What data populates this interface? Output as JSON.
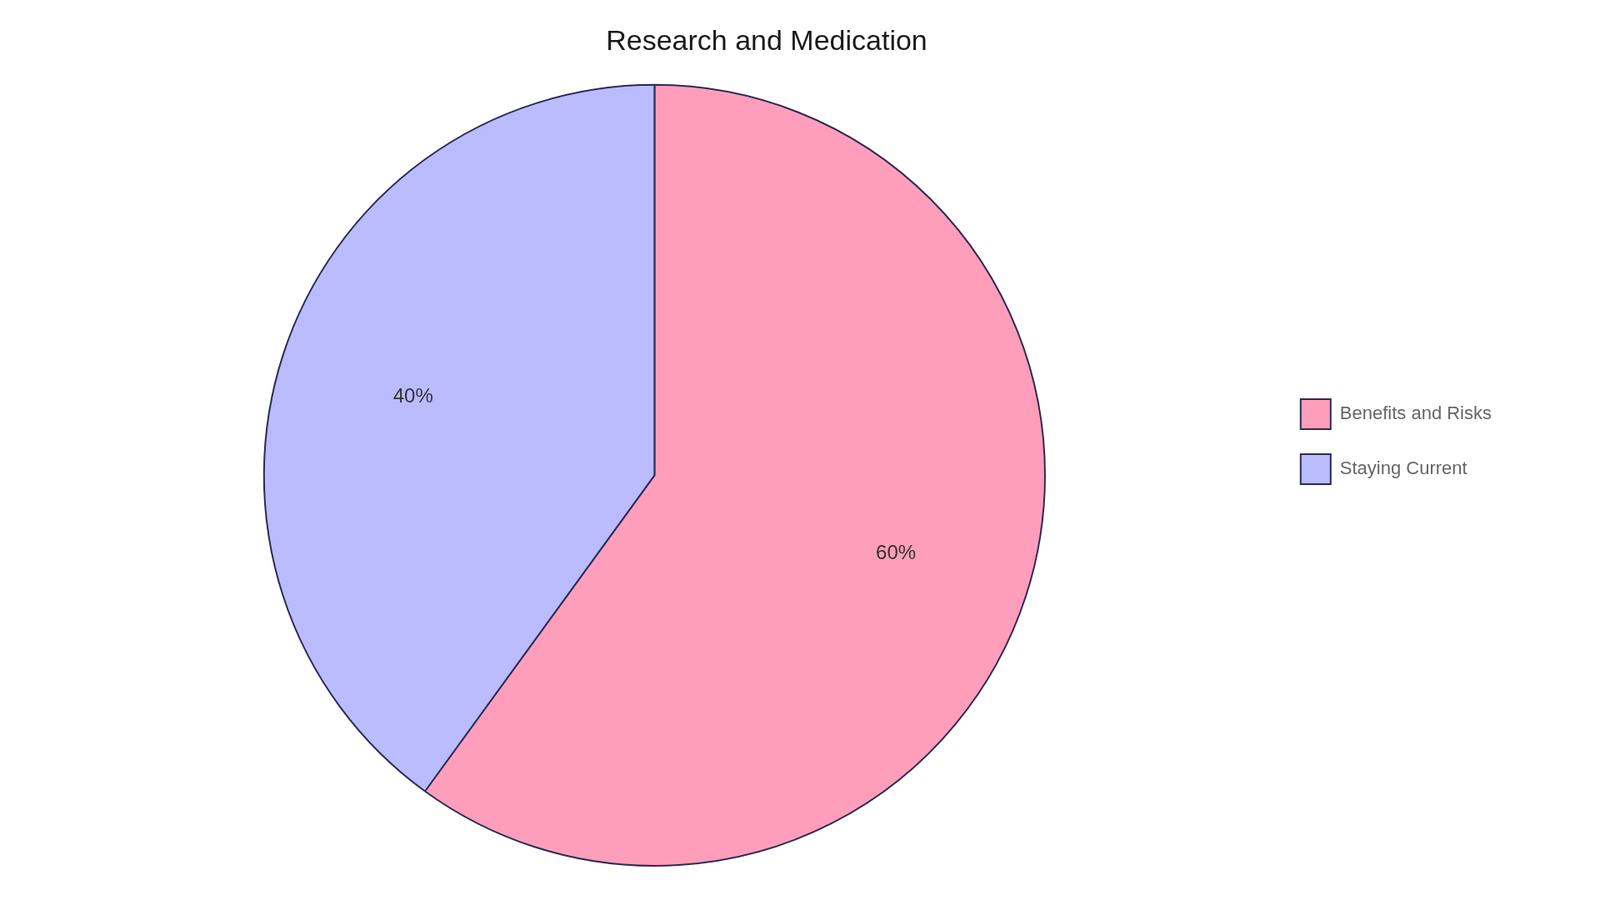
{
  "chart_data": {
    "type": "pie",
    "title": "Research and Medication",
    "categories": [
      "Benefits and Risks",
      "Staying Current"
    ],
    "values": [
      60,
      40
    ],
    "value_labels": [
      "60%",
      "40%"
    ],
    "colors": [
      "#FF9EBB",
      "#BBBBFF"
    ],
    "data_labels": true,
    "legend": "right"
  }
}
